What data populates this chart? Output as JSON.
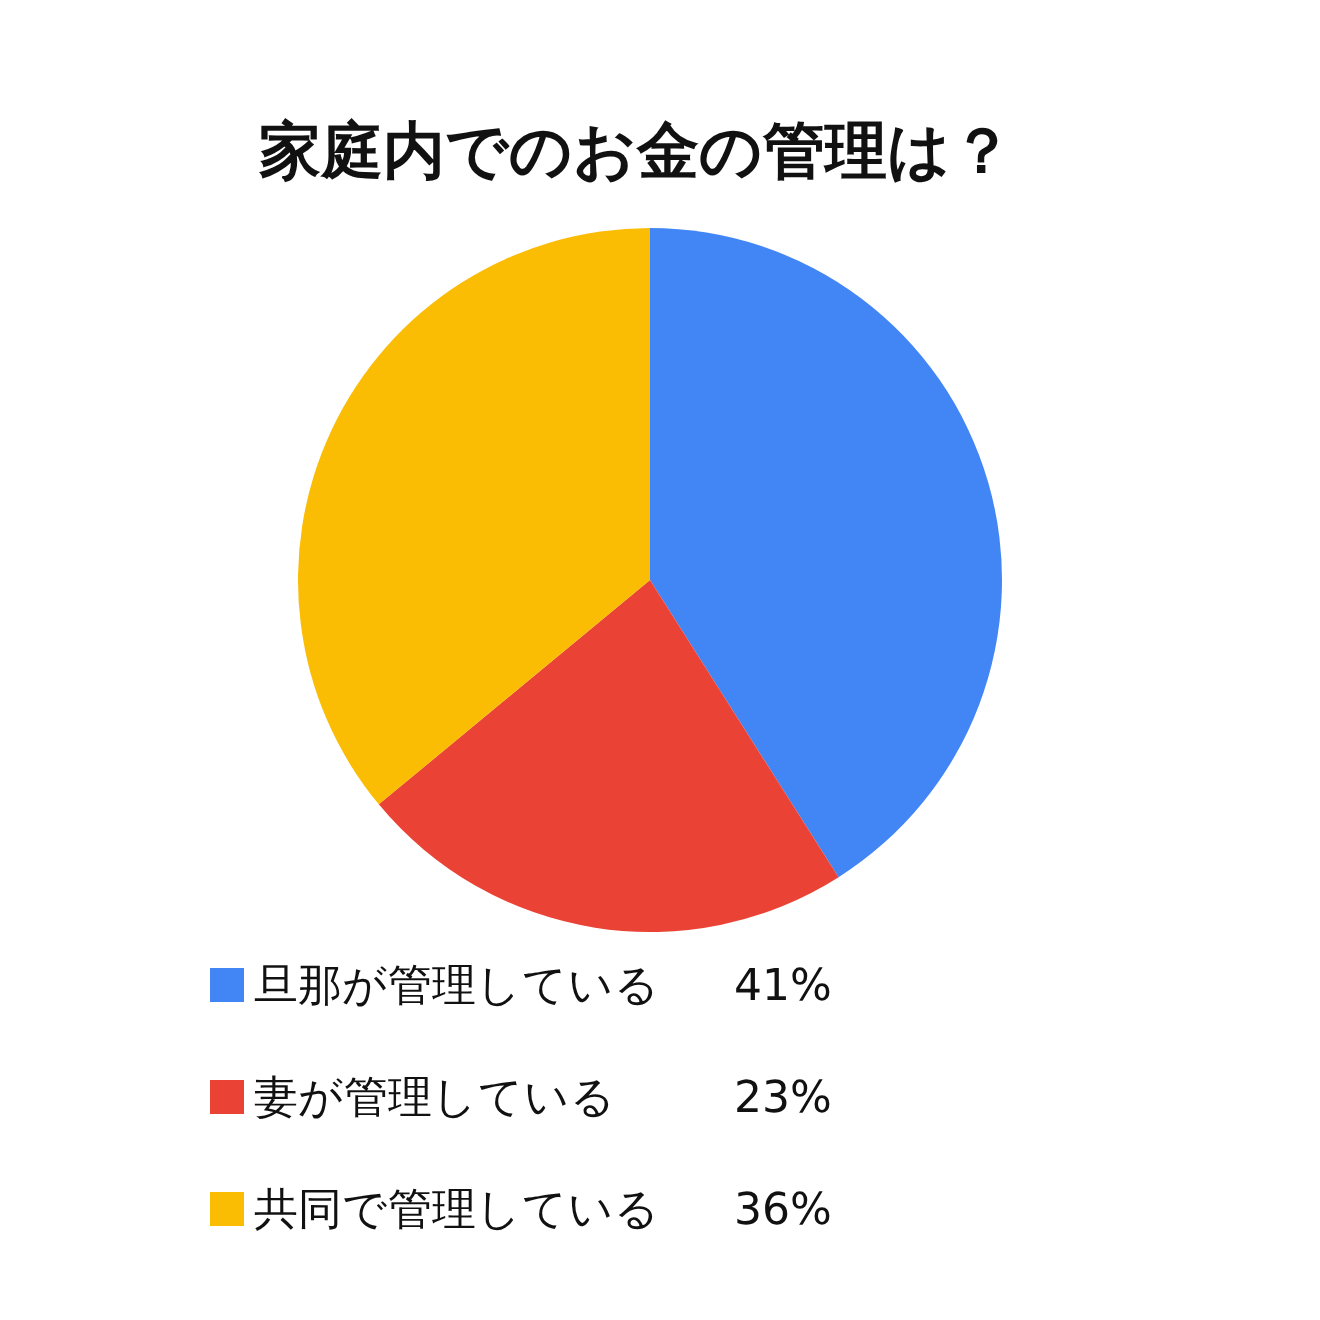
{
  "chart_data": {
    "type": "pie",
    "title": "家庭内でのお金の管理は？",
    "categories": [
      "旦那が管理している",
      "妻が管理している",
      "共同で管理している"
    ],
    "values": [
      41,
      23,
      36
    ],
    "colors": [
      "#4285f4",
      "#ea4335",
      "#fbbc04"
    ],
    "value_labels": [
      "41%",
      "23%",
      "36%"
    ],
    "legend": "bottom left"
  }
}
